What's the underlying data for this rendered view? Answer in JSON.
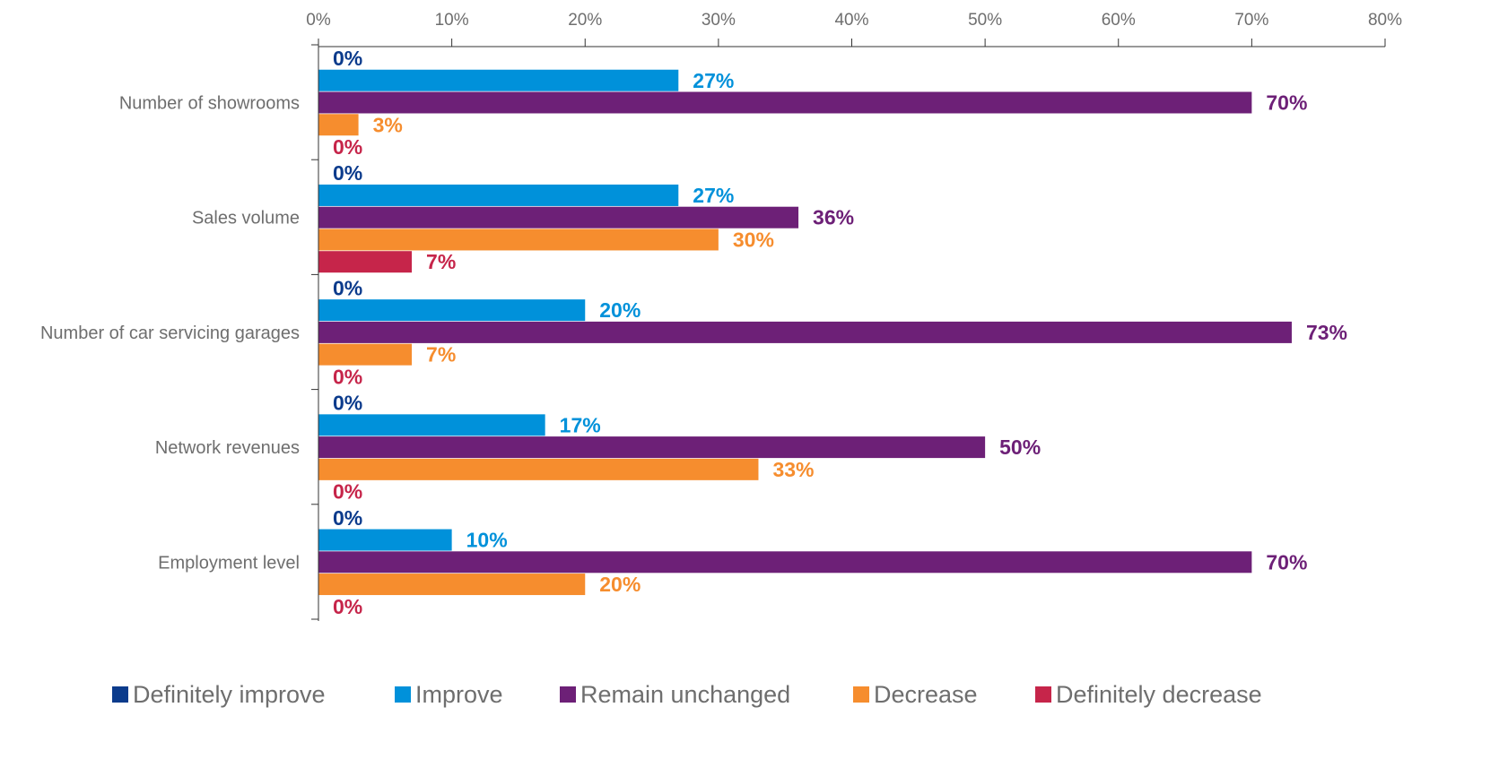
{
  "chart_data": {
    "type": "bar",
    "orientation": "horizontal",
    "title": "",
    "xlabel": "",
    "ylabel": "",
    "xlim": [
      0,
      80
    ],
    "x_ticks": [
      0,
      10,
      20,
      30,
      40,
      50,
      60,
      70,
      80
    ],
    "x_tick_labels": [
      "0%",
      "10%",
      "20%",
      "30%",
      "40%",
      "50%",
      "60%",
      "70%",
      "80%"
    ],
    "x_axis_position": "top",
    "grid": false,
    "legend_position": "bottom",
    "value_suffix": "%",
    "categories": [
      "Number of showrooms",
      "Sales volume",
      "Number of car servicing garages",
      "Network revenues",
      "Employment level"
    ],
    "series": [
      {
        "name": "Definitely improve",
        "color": "#0B3B8C",
        "values": [
          0,
          0,
          0,
          0,
          0
        ]
      },
      {
        "name": "Improve",
        "color": "#0091DA",
        "values": [
          27,
          27,
          20,
          17,
          10
        ]
      },
      {
        "name": "Remain unchanged",
        "color": "#6D2077",
        "values": [
          70,
          36,
          73,
          50,
          70
        ]
      },
      {
        "name": "Decrease",
        "color": "#F68D2E",
        "values": [
          3,
          30,
          7,
          33,
          20
        ]
      },
      {
        "name": "Definitely decrease",
        "color": "#C6254A",
        "values": [
          0,
          7,
          0,
          0,
          0
        ]
      }
    ]
  }
}
